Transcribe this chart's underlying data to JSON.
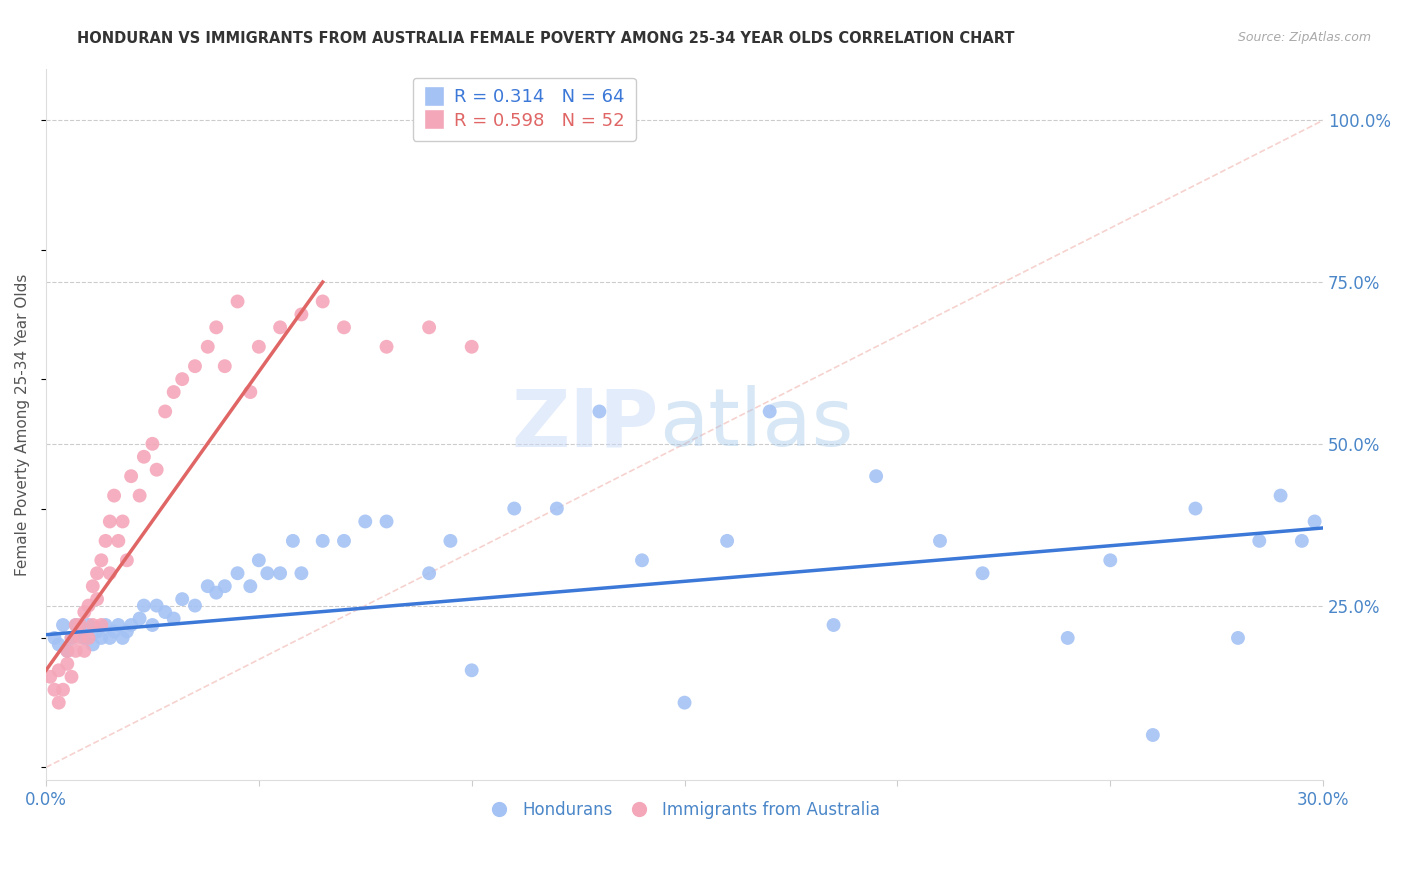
{
  "title": "HONDURAN VS IMMIGRANTS FROM AUSTRALIA FEMALE POVERTY AMONG 25-34 YEAR OLDS CORRELATION CHART",
  "source": "Source: ZipAtlas.com",
  "ylabel": "Female Poverty Among 25-34 Year Olds",
  "right_yticks": [
    0.0,
    0.25,
    0.5,
    0.75,
    1.0
  ],
  "right_yticklabels": [
    "",
    "25.0%",
    "50.0%",
    "75.0%",
    "100.0%"
  ],
  "xmin": 0.0,
  "xmax": 0.3,
  "ymin": -0.02,
  "ymax": 1.08,
  "blue_color": "#a4c2f4",
  "pink_color": "#f4a7b9",
  "blue_line_color": "#3c78d8",
  "pink_line_color": "#e06666",
  "diag_line_color": "#f4c7c3",
  "legend_blue_R": "R = 0.314",
  "legend_blue_N": "N = 64",
  "legend_pink_R": "R = 0.598",
  "legend_pink_N": "N = 52",
  "watermark_zip": "ZIP",
  "watermark_atlas": "atlas",
  "title_color": "#333333",
  "axis_color": "#4a86c8",
  "grid_color": "#cccccc",
  "blue_scatter_x": [
    0.002,
    0.003,
    0.004,
    0.005,
    0.006,
    0.007,
    0.008,
    0.009,
    0.01,
    0.011,
    0.012,
    0.013,
    0.014,
    0.015,
    0.016,
    0.017,
    0.018,
    0.019,
    0.02,
    0.022,
    0.023,
    0.025,
    0.026,
    0.028,
    0.03,
    0.032,
    0.035,
    0.038,
    0.04,
    0.042,
    0.045,
    0.048,
    0.05,
    0.052,
    0.055,
    0.058,
    0.06,
    0.065,
    0.07,
    0.075,
    0.08,
    0.09,
    0.095,
    0.1,
    0.11,
    0.12,
    0.13,
    0.14,
    0.15,
    0.16,
    0.17,
    0.185,
    0.195,
    0.21,
    0.22,
    0.24,
    0.25,
    0.26,
    0.27,
    0.28,
    0.285,
    0.29,
    0.295,
    0.298
  ],
  "blue_scatter_y": [
    0.2,
    0.19,
    0.22,
    0.18,
    0.2,
    0.22,
    0.21,
    0.2,
    0.22,
    0.19,
    0.21,
    0.2,
    0.22,
    0.2,
    0.21,
    0.22,
    0.2,
    0.21,
    0.22,
    0.23,
    0.25,
    0.22,
    0.25,
    0.24,
    0.23,
    0.26,
    0.25,
    0.28,
    0.27,
    0.28,
    0.3,
    0.28,
    0.32,
    0.3,
    0.3,
    0.35,
    0.3,
    0.35,
    0.35,
    0.38,
    0.38,
    0.3,
    0.35,
    0.15,
    0.4,
    0.4,
    0.55,
    0.32,
    0.1,
    0.35,
    0.55,
    0.22,
    0.45,
    0.35,
    0.3,
    0.2,
    0.32,
    0.05,
    0.4,
    0.2,
    0.35,
    0.42,
    0.35,
    0.38
  ],
  "pink_scatter_x": [
    0.001,
    0.002,
    0.003,
    0.003,
    0.004,
    0.005,
    0.005,
    0.006,
    0.006,
    0.007,
    0.007,
    0.008,
    0.008,
    0.009,
    0.009,
    0.01,
    0.01,
    0.011,
    0.011,
    0.012,
    0.012,
    0.013,
    0.013,
    0.014,
    0.015,
    0.015,
    0.016,
    0.017,
    0.018,
    0.019,
    0.02,
    0.022,
    0.023,
    0.025,
    0.026,
    0.028,
    0.03,
    0.032,
    0.035,
    0.038,
    0.04,
    0.042,
    0.045,
    0.048,
    0.05,
    0.055,
    0.06,
    0.065,
    0.07,
    0.08,
    0.09,
    0.1
  ],
  "pink_scatter_y": [
    0.14,
    0.12,
    0.15,
    0.1,
    0.12,
    0.18,
    0.16,
    0.2,
    0.14,
    0.22,
    0.18,
    0.22,
    0.2,
    0.24,
    0.18,
    0.25,
    0.2,
    0.28,
    0.22,
    0.3,
    0.26,
    0.32,
    0.22,
    0.35,
    0.38,
    0.3,
    0.42,
    0.35,
    0.38,
    0.32,
    0.45,
    0.42,
    0.48,
    0.5,
    0.46,
    0.55,
    0.58,
    0.6,
    0.62,
    0.65,
    0.68,
    0.62,
    0.72,
    0.58,
    0.65,
    0.68,
    0.7,
    0.72,
    0.68,
    0.65,
    0.68,
    0.65
  ],
  "blue_trend_x": [
    0.0,
    0.3
  ],
  "blue_trend_y": [
    0.205,
    0.37
  ],
  "pink_trend_x": [
    0.0,
    0.065
  ],
  "pink_trend_y": [
    0.15,
    0.75
  ]
}
